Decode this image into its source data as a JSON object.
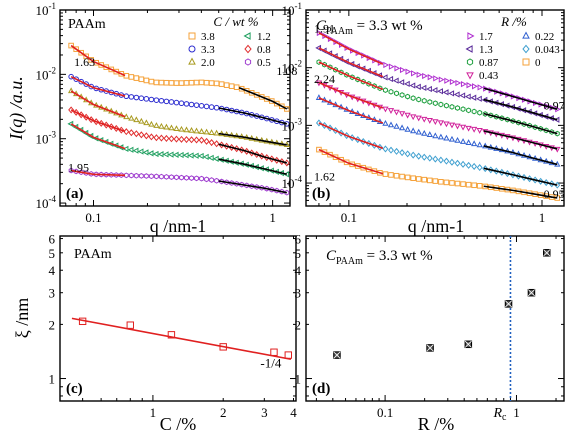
{
  "figure": {
    "axis_labels": {
      "iq": "I(q) /a.u.",
      "q_a": "q /nm-1",
      "q_b": "q /nm-1",
      "xi": "ξ /nm",
      "c_pct": "C /%",
      "r_pct": "R /%"
    }
  },
  "chart_data": [
    {
      "panel": "(a)",
      "type": "scatter",
      "title": "PAAm",
      "xlabel": "q /nm-1",
      "ylabel": "I(q) /a.u.",
      "xscale": "log",
      "yscale": "log",
      "xlim": [
        0.065,
        1.25
      ],
      "ylim": [
        9e-05,
        0.1
      ],
      "x_ticks": [
        "0.1",
        "1"
      ],
      "y_ticks": [
        "10-4",
        "10-3",
        "10-2",
        "10-1"
      ],
      "legend": {
        "title": "C / wt %",
        "position": "top-right",
        "columns": 2
      },
      "annotations": [
        {
          "text": "1.63",
          "x": 0.078,
          "y": 0.0135
        },
        {
          "text": "1.08",
          "x": 1.05,
          "y": 0.0098
        },
        {
          "text": "1.95",
          "x": 0.072,
          "y": 0.00031
        }
      ],
      "series": [
        {
          "name": "3.8",
          "color": "#F5A23A",
          "marker": "square",
          "q_start": 0.075,
          "q_end": 1.2,
          "fit_color": "#E02020",
          "points": [
            [
              0.075,
              0.028
            ],
            [
              0.1,
              0.0158
            ],
            [
              0.15,
              0.0096
            ],
            [
              0.22,
              0.0075
            ],
            [
              0.3,
              0.0073
            ],
            [
              0.4,
              0.0075
            ],
            [
              0.5,
              0.0072
            ],
            [
              0.65,
              0.0062
            ],
            [
              0.8,
              0.0049
            ],
            [
              1.0,
              0.0038
            ],
            [
              1.2,
              0.0029
            ]
          ]
        },
        {
          "name": "3.3",
          "color": "#2C2CCF",
          "marker": "circle",
          "q_start": 0.075,
          "q_end": 1.2,
          "fit_color": "#000000",
          "points": [
            [
              0.075,
              0.0092
            ],
            [
              0.1,
              0.0062
            ],
            [
              0.15,
              0.0046
            ],
            [
              0.22,
              0.004
            ],
            [
              0.3,
              0.0036
            ],
            [
              0.5,
              0.003
            ],
            [
              0.7,
              0.0025
            ],
            [
              0.9,
              0.0021
            ],
            [
              1.2,
              0.0017
            ]
          ]
        },
        {
          "name": "2.0",
          "color": "#A89A20",
          "marker": "triangle",
          "q_start": 0.075,
          "q_end": 1.2,
          "fit_color": "#000000",
          "points": [
            [
              0.075,
              0.0055
            ],
            [
              0.1,
              0.0034
            ],
            [
              0.15,
              0.0022
            ],
            [
              0.22,
              0.0016
            ],
            [
              0.3,
              0.0014
            ],
            [
              0.5,
              0.0012
            ],
            [
              0.7,
              0.00105
            ],
            [
              0.9,
              0.00092
            ],
            [
              1.2,
              0.0008
            ]
          ]
        },
        {
          "name": "1.2",
          "color": "#20A060",
          "marker": "triangle-left",
          "q_start": 0.075,
          "q_end": 1.2,
          "fit_color": "#000000",
          "points": [
            [
              0.075,
              0.0017
            ],
            [
              0.1,
              0.00105
            ],
            [
              0.15,
              0.0007
            ],
            [
              0.22,
              0.00058
            ],
            [
              0.3,
              0.00056
            ],
            [
              0.4,
              0.00054
            ],
            [
              0.5,
              0.00048
            ],
            [
              0.7,
              0.0004
            ],
            [
              0.9,
              0.00034
            ],
            [
              1.2,
              0.00028
            ]
          ]
        },
        {
          "name": "0.8",
          "color": "#E03030",
          "marker": "diamond",
          "q_start": 0.075,
          "q_end": 1.2,
          "fit_color": "#000000",
          "points": [
            [
              0.075,
              0.0028
            ],
            [
              0.1,
              0.0019
            ],
            [
              0.15,
              0.0013
            ],
            [
              0.22,
              0.00104
            ],
            [
              0.3,
              0.00098
            ],
            [
              0.4,
              0.00095
            ],
            [
              0.5,
              0.00082
            ],
            [
              0.7,
              0.00065
            ],
            [
              0.9,
              0.00052
            ],
            [
              1.2,
              0.00042
            ]
          ]
        },
        {
          "name": "0.5",
          "color": "#A040D0",
          "marker": "hexagon",
          "q_start": 0.075,
          "q_end": 1.2,
          "fit_color": "#000000",
          "points": [
            [
              0.075,
              0.00032
            ],
            [
              0.1,
              0.00028
            ],
            [
              0.15,
              0.00027
            ],
            [
              0.22,
              0.00026
            ],
            [
              0.3,
              0.00025
            ],
            [
              0.4,
              0.00024
            ],
            [
              0.5,
              0.00022
            ],
            [
              0.7,
              0.00019
            ],
            [
              0.9,
              0.00017
            ],
            [
              1.2,
              0.000145
            ]
          ]
        }
      ]
    },
    {
      "panel": "(b)",
      "type": "scatter",
      "title": "CPAAm = 3.3 wt %",
      "xlabel": "q /nm-1",
      "ylabel": "",
      "xscale": "log",
      "yscale": "log",
      "xlim": [
        0.06,
        1.3
      ],
      "ylim": [
        4e-05,
        0.1
      ],
      "x_ticks": [
        "0.1",
        "1"
      ],
      "y_ticks": [
        "10-4",
        "10-3",
        "10-2",
        "10-1"
      ],
      "legend": {
        "title": "R /%",
        "position": "top-right",
        "columns": 2
      },
      "annotations": [
        {
          "text": "1.91",
          "x": 0.066,
          "y": 0.041
        },
        {
          "text": "2.24",
          "x": 0.066,
          "y": 0.0054
        },
        {
          "text": "0.97",
          "x": 1.02,
          "y": 0.0019
        },
        {
          "text": "1.62",
          "x": 0.066,
          "y": 0.00011
        },
        {
          "text": "0.95",
          "x": 1.02,
          "y": 5.5e-05
        }
      ],
      "series": [
        {
          "name": "1.7",
          "color": "#B030D0",
          "marker": "triangle-right",
          "fit_color": "#000000",
          "points": [
            [
              0.07,
              0.04
            ],
            [
              0.1,
              0.021
            ],
            [
              0.15,
              0.0115
            ],
            [
              0.22,
              0.0078
            ],
            [
              0.3,
              0.0062
            ],
            [
              0.5,
              0.0044
            ],
            [
              0.7,
              0.0032
            ],
            [
              0.9,
              0.0025
            ],
            [
              1.2,
              0.0019
            ]
          ]
        },
        {
          "name": "1.3",
          "color": "#5A2C9A",
          "marker": "triangle-left",
          "fit_color": "#000000",
          "points": [
            [
              0.07,
              0.022
            ],
            [
              0.1,
              0.0122
            ],
            [
              0.15,
              0.007
            ],
            [
              0.22,
              0.0048
            ],
            [
              0.3,
              0.0039
            ],
            [
              0.5,
              0.0028
            ],
            [
              0.7,
              0.0021
            ],
            [
              0.9,
              0.00165
            ],
            [
              1.2,
              0.00125
            ]
          ]
        },
        {
          "name": "0.87",
          "color": "#20A040",
          "marker": "hexagon",
          "fit_color": "#000000",
          "points": [
            [
              0.07,
              0.0125
            ],
            [
              0.1,
              0.0072
            ],
            [
              0.15,
              0.0042
            ],
            [
              0.22,
              0.0029
            ],
            [
              0.3,
              0.0023
            ],
            [
              0.5,
              0.0016
            ],
            [
              0.7,
              0.0012
            ],
            [
              0.9,
              0.00095
            ],
            [
              1.2,
              0.00072
            ]
          ]
        },
        {
          "name": "0.43",
          "color": "#D0209A",
          "marker": "triangle-down",
          "fit_color": "#000000",
          "points": [
            [
              0.07,
              0.0055
            ],
            [
              0.1,
              0.0033
            ],
            [
              0.15,
              0.002
            ],
            [
              0.22,
              0.0014
            ],
            [
              0.3,
              0.00112
            ],
            [
              0.5,
              0.0008
            ],
            [
              0.7,
              0.00062
            ],
            [
              0.9,
              0.0005
            ],
            [
              1.2,
              0.00039
            ]
          ]
        },
        {
          "name": "0.22",
          "color": "#3060D0",
          "marker": "triangle",
          "fit_color": "#000000",
          "points": [
            [
              0.07,
              0.003
            ],
            [
              0.1,
              0.0018
            ],
            [
              0.15,
              0.0011
            ],
            [
              0.22,
              0.00078
            ],
            [
              0.3,
              0.00062
            ],
            [
              0.5,
              0.00044
            ],
            [
              0.7,
              0.00034
            ],
            [
              0.9,
              0.00027
            ],
            [
              1.2,
              0.00021
            ]
          ]
        },
        {
          "name": "0.043",
          "color": "#40A0D0",
          "marker": "diamond",
          "fit_color": "#000000",
          "points": [
            [
              0.07,
              0.0011
            ],
            [
              0.1,
              0.00064
            ],
            [
              0.15,
              0.0004
            ],
            [
              0.22,
              0.0003
            ],
            [
              0.3,
              0.00025
            ],
            [
              0.5,
              0.00018
            ],
            [
              0.7,
              0.00014
            ],
            [
              0.9,
              0.000115
            ],
            [
              1.2,
              9.2e-05
            ]
          ]
        },
        {
          "name": "0",
          "color": "#F5A23A",
          "marker": "square",
          "fit_color": "#E02020",
          "points": [
            [
              0.07,
              0.00038
            ],
            [
              0.1,
              0.00022
            ],
            [
              0.15,
              0.000145
            ],
            [
              0.22,
              0.00012
            ],
            [
              0.3,
              0.000105
            ],
            [
              0.5,
              8.8e-05
            ],
            [
              0.7,
              7.5e-05
            ],
            [
              0.9,
              6.5e-05
            ],
            [
              1.2,
              5.5e-05
            ]
          ]
        }
      ]
    },
    {
      "panel": "(c)",
      "type": "scatter",
      "title": "PAAm",
      "xlabel": "C /%",
      "ylabel": "ξ /nm",
      "xscale": "log",
      "yscale": "log",
      "xlim": [
        0.4,
        4.1
      ],
      "ylim": [
        0.75,
        6.2
      ],
      "x_ticks": [
        "1",
        "2",
        "3",
        "4"
      ],
      "y_ticks": [
        "1",
        "2",
        "3",
        "4",
        "5",
        "6"
      ],
      "marker": "square",
      "color": "#E02020",
      "points": [
        [
          0.5,
          2.08
        ],
        [
          0.8,
          1.98
        ],
        [
          1.2,
          1.75
        ],
        [
          2.0,
          1.5
        ],
        [
          3.3,
          1.4
        ],
        [
          3.8,
          1.35
        ]
      ],
      "fit_line": {
        "x": [
          0.45,
          3.9
        ],
        "y": [
          2.16,
          1.28
        ],
        "label": "-1/4"
      }
    },
    {
      "panel": "(d)",
      "type": "scatter",
      "title": "CPAAm = 3.3 wt %",
      "xlabel": "R /%",
      "ylabel": "",
      "xscale": "log",
      "yscale": "log",
      "xlim": [
        0.025,
        2.3
      ],
      "ylim": [
        0.75,
        6.2
      ],
      "x_ticks": [
        "0.1",
        "1"
      ],
      "y_ticks": [
        "1",
        "2",
        "3",
        "4",
        "5",
        "6"
      ],
      "marker": "square-x",
      "color": "#000000",
      "points": [
        [
          0.043,
          1.35
        ],
        [
          0.22,
          1.48
        ],
        [
          0.43,
          1.55
        ],
        [
          0.87,
          2.6
        ],
        [
          1.3,
          3.0
        ],
        [
          1.7,
          5.0
        ]
      ],
      "vline": {
        "x": 0.9,
        "label": "Rc",
        "color": "#2060C0"
      }
    }
  ]
}
